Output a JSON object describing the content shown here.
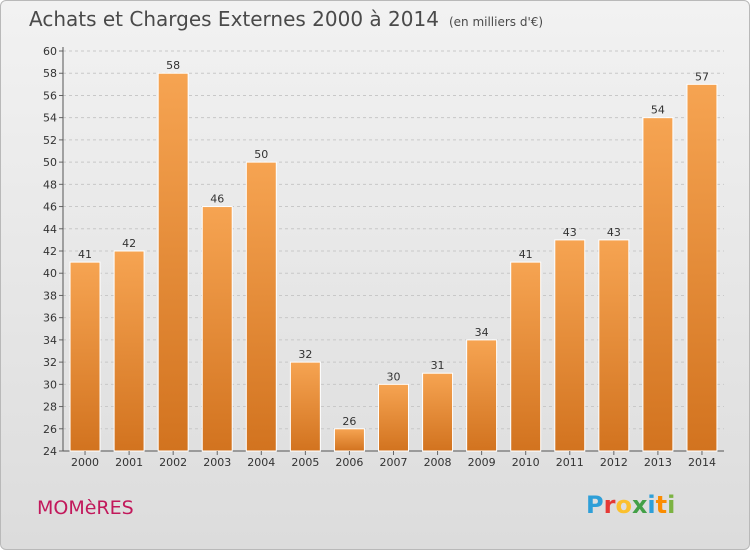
{
  "header": {
    "title": "Achats et Charges Externes 2000 à 2014",
    "subtitle": "(en milliers d'€)"
  },
  "footer": {
    "commune": "MOMèRES",
    "logo_letters": [
      "P",
      "r",
      "o",
      "x",
      "i",
      "t",
      "i"
    ],
    "logo_colors": [
      "#2e9fd8",
      "#e53935",
      "#fbc02d",
      "#43a047",
      "#2e9fd8",
      "#fb8c00",
      "#7cb342"
    ]
  },
  "chart_data": {
    "type": "bar",
    "title": "Achats et Charges Externes 2000 à 2014",
    "subtitle": "(en milliers d'€)",
    "xlabel": "",
    "ylabel": "",
    "categories": [
      "2000",
      "2001",
      "2002",
      "2003",
      "2004",
      "2005",
      "2006",
      "2007",
      "2008",
      "2009",
      "2010",
      "2011",
      "2012",
      "2013",
      "2014"
    ],
    "values": [
      41,
      42,
      58,
      46,
      50,
      32,
      26,
      30,
      31,
      34,
      41,
      43,
      43,
      54,
      57
    ],
    "ylim": [
      24,
      60
    ],
    "yticks": [
      24,
      26,
      28,
      30,
      32,
      34,
      36,
      38,
      40,
      42,
      44,
      46,
      48,
      50,
      52,
      54,
      56,
      58,
      60
    ],
    "bar_color_top": "#f6a452",
    "bar_color_bottom": "#d2731f",
    "grid": true
  }
}
